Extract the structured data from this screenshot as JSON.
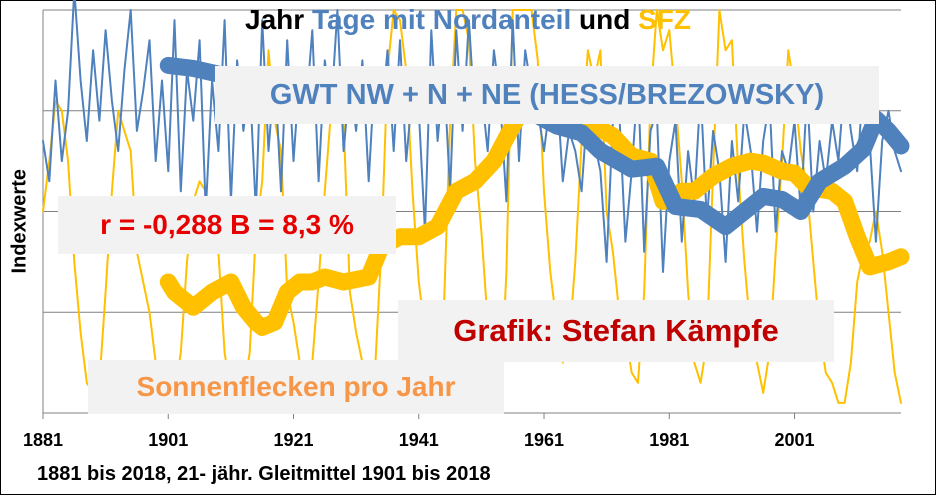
{
  "title": {
    "part1": "Jahr",
    "part2": "Tage mit Nordanteil",
    "part3": "und",
    "part4": "SFZ"
  },
  "ylabel": "Indexwerte",
  "footer": "1881 bis 2018, 21- jähr. Gleitmittel 1901 bis 2018",
  "annotations": {
    "gwt": "GWT NW + N + NE (HESS/BREZOWSKY)",
    "corr": "r = -0,288  B = 8,3 %",
    "credit": "Grafik: Stefan Kämpfe",
    "sunspots": "Sonnenflecken pro Jahr"
  },
  "colors": {
    "blue": "#4f81bd",
    "gold": "#ffc000",
    "red": "#e60000",
    "darkred": "#c00000",
    "orange": "#f79646",
    "grid": "#808080"
  },
  "chart_data": {
    "type": "line",
    "title": "Jahr Tage mit Nordanteil und SFZ",
    "ylabel": "Indexwerte",
    "xlabel": "1881 bis 2018, 21- jähr. Gleitmittel 1901 bis 2018",
    "x_ticks": [
      "1881",
      "1901",
      "1921",
      "1941",
      "1961",
      "1981",
      "2001"
    ],
    "xlim": [
      1881,
      2018
    ],
    "ylim": [
      0,
      4
    ],
    "grid": "horizontal",
    "series": [
      {
        "name": "GWT NW + N + NE (HESS/BREZOWSKY)",
        "style": "thin",
        "color": "#4f81bd",
        "x": [
          1881,
          1882,
          1883,
          1884,
          1885,
          1886,
          1887,
          1888,
          1889,
          1890,
          1891,
          1892,
          1893,
          1894,
          1895,
          1896,
          1897,
          1898,
          1899,
          1900,
          1901,
          1902,
          1903,
          1904,
          1905,
          1906,
          1907,
          1908,
          1909,
          1910,
          1911,
          1912,
          1913,
          1914,
          1915,
          1916,
          1917,
          1918,
          1919,
          1920,
          1921,
          1922,
          1923,
          1924,
          1925,
          1926,
          1927,
          1928,
          1929,
          1930,
          1931,
          1932,
          1933,
          1934,
          1935,
          1936,
          1937,
          1938,
          1939,
          1940,
          1941,
          1942,
          1943,
          1944,
          1945,
          1946,
          1947,
          1948,
          1949,
          1950,
          1951,
          1952,
          1953,
          1954,
          1955,
          1956,
          1957,
          1958,
          1959,
          1960,
          1961,
          1962,
          1963,
          1964,
          1965,
          1966,
          1967,
          1968,
          1969,
          1970,
          1971,
          1972,
          1973,
          1974,
          1975,
          1976,
          1977,
          1978,
          1979,
          1980,
          1981,
          1982,
          1983,
          1984,
          1985,
          1986,
          1987,
          1988,
          1989,
          1990,
          1991,
          1992,
          1993,
          1994,
          1995,
          1996,
          1997,
          1998,
          1999,
          2000,
          2001,
          2002,
          2003,
          2004,
          2005,
          2006,
          2007,
          2008,
          2009,
          2010,
          2011,
          2012,
          2013,
          2014,
          2015,
          2016,
          2017,
          2018
        ],
        "y": [
          2.7,
          2.3,
          3.3,
          2.5,
          3.0,
          4.2,
          3.3,
          2.7,
          3.6,
          2.9,
          3.8,
          3.1,
          2.6,
          3.4,
          4.0,
          2.8,
          3.2,
          3.7,
          2.5,
          3.3,
          2.4,
          3.9,
          2.2,
          3.4,
          2.9,
          3.7,
          2.0,
          3.3,
          2.6,
          3.9,
          2.1,
          3.5,
          2.8,
          3.3,
          2.0,
          3.9,
          2.6,
          3.4,
          2.2,
          3.7,
          2.5,
          3.4,
          3.0,
          3.8,
          2.3,
          3.5,
          3.0,
          4.0,
          2.6,
          3.3,
          2.8,
          3.5,
          2.3,
          3.4,
          2.9,
          3.6,
          2.6,
          3.7,
          2.5,
          3.2,
          3.0,
          1.8,
          3.8,
          2.7,
          3.4,
          2.2,
          3.8,
          2.8,
          3.9,
          2.9,
          3.2,
          2.6,
          3.6,
          3.1,
          2.1,
          3.9,
          2.5,
          3.6,
          3.2,
          3.0,
          2.6,
          3.1,
          3.3,
          2.3,
          2.8,
          2.6,
          2.2,
          3.1,
          2.7,
          2.4,
          1.5,
          2.9,
          3.0,
          1.7,
          2.4,
          3.3,
          1.6,
          2.8,
          3.0,
          1.4,
          2.5,
          2.9,
          1.7,
          2.6,
          2.1,
          3.2,
          1.9,
          2.8,
          2.4,
          1.5,
          2.7,
          2.1,
          3.0,
          2.6,
          1.8,
          2.7,
          3.1,
          1.8,
          2.6,
          2.4,
          2.9,
          2.0,
          3.2,
          2.0,
          2.7,
          2.3,
          2.9,
          2.5,
          3.3,
          2.8,
          2.4,
          3.3,
          2.7,
          1.7,
          2.7,
          3.0,
          2.6,
          2.4
        ]
      },
      {
        "name": "GWT NW + N + NE (HESS/BREZOWSKY)",
        "style": "smoothed",
        "color": "#4f81bd",
        "x": [
          1901,
          1905,
          1910,
          1915,
          1920,
          1925,
          1930,
          1935,
          1940,
          1945,
          1950,
          1955,
          1958,
          1960,
          1963,
          1967,
          1970,
          1975,
          1979,
          1982,
          1986,
          1990,
          1993,
          1996,
          1999,
          2002,
          2005,
          2009,
          2012,
          2014,
          2016,
          2018
        ],
        "y": [
          3.45,
          3.42,
          3.35,
          3.28,
          3.28,
          3.2,
          3.08,
          3.2,
          3.28,
          3.22,
          3.2,
          3.1,
          3.12,
          2.95,
          2.85,
          2.78,
          2.6,
          2.42,
          2.45,
          2.05,
          2.02,
          1.85,
          2.0,
          2.15,
          2.12,
          2.0,
          2.3,
          2.45,
          2.62,
          2.92,
          2.8,
          2.65
        ]
      },
      {
        "name": "Sonnenflecken pro Jahr",
        "style": "thin",
        "color": "#ffc000",
        "x": [
          1881,
          1882,
          1883,
          1884,
          1885,
          1886,
          1887,
          1888,
          1889,
          1890,
          1891,
          1892,
          1893,
          1894,
          1895,
          1896,
          1897,
          1898,
          1899,
          1900,
          1901,
          1902,
          1903,
          1904,
          1905,
          1906,
          1907,
          1908,
          1909,
          1910,
          1911,
          1912,
          1913,
          1914,
          1915,
          1916,
          1917,
          1918,
          1919,
          1920,
          1921,
          1922,
          1923,
          1924,
          1925,
          1926,
          1927,
          1928,
          1929,
          1930,
          1931,
          1932,
          1933,
          1934,
          1935,
          1936,
          1937,
          1938,
          1939,
          1940,
          1941,
          1942,
          1943,
          1944,
          1945,
          1946,
          1947,
          1948,
          1949,
          1950,
          1951,
          1952,
          1953,
          1954,
          1955,
          1956,
          1957,
          1958,
          1959,
          1960,
          1961,
          1962,
          1963,
          1964,
          1965,
          1966,
          1967,
          1968,
          1969,
          1970,
          1971,
          1972,
          1973,
          1974,
          1975,
          1976,
          1977,
          1978,
          1979,
          1980,
          1981,
          1982,
          1983,
          1984,
          1985,
          1986,
          1987,
          1988,
          1989,
          1990,
          1991,
          1992,
          1993,
          1994,
          1995,
          1996,
          1997,
          1998,
          1999,
          2000,
          2001,
          2002,
          2003,
          2004,
          2005,
          2006,
          2007,
          2008,
          2009,
          2010,
          2011,
          2012,
          2013,
          2014,
          2015,
          2016,
          2017,
          2018
        ],
        "y": [
          2.0,
          2.5,
          3.1,
          3.0,
          2.5,
          1.5,
          0.8,
          0.3,
          0.2,
          0.3,
          1.2,
          2.2,
          3.0,
          2.8,
          2.6,
          1.6,
          1.3,
          1.0,
          0.5,
          0.3,
          0.1,
          0.2,
          0.6,
          1.5,
          2.1,
          2.3,
          2.2,
          1.7,
          1.6,
          0.6,
          0.2,
          0.1,
          0.2,
          0.6,
          1.8,
          2.3,
          3.6,
          2.9,
          2.6,
          1.2,
          0.9,
          0.5,
          0.2,
          0.5,
          1.3,
          2.2,
          3.0,
          3.2,
          2.9,
          1.2,
          0.8,
          0.5,
          0.2,
          0.4,
          1.6,
          3.4,
          4.0,
          3.9,
          3.4,
          2.2,
          1.3,
          0.8,
          0.4,
          0.3,
          1.0,
          2.9,
          4.0,
          4.0,
          3.7,
          2.5,
          1.8,
          0.9,
          0.4,
          0.1,
          1.4,
          4.0,
          4.0,
          4.0,
          4.0,
          3.5,
          2.2,
          1.4,
          0.9,
          0.5,
          0.7,
          1.5,
          2.7,
          3.6,
          3.3,
          3.6,
          2.0,
          1.6,
          1.0,
          0.8,
          0.4,
          0.3,
          1.2,
          3.1,
          4.0,
          3.6,
          3.8,
          3.1,
          2.3,
          1.2,
          0.5,
          0.3,
          0.7,
          2.4,
          4.0,
          3.6,
          3.7,
          2.4,
          1.5,
          0.8,
          0.5,
          0.2,
          0.6,
          1.6,
          2.5,
          3.6,
          3.2,
          2.6,
          2.2,
          1.5,
          0.8,
          0.4,
          0.3,
          0.1,
          0.1,
          0.5,
          1.3,
          1.6,
          1.7,
          2.0,
          1.6,
          1.0,
          0.4,
          0.1
        ]
      },
      {
        "name": "Sonnenflecken pro Jahr",
        "style": "smoothed",
        "color": "#ffc000",
        "x": [
          1901,
          1902,
          1905,
          1908,
          1911,
          1913,
          1915,
          1916,
          1918,
          1920,
          1922,
          1924,
          1926,
          1929,
          1933,
          1935,
          1938,
          1941,
          1944,
          1947,
          1950,
          1953,
          1956,
          1958,
          1961,
          1963,
          1966,
          1969,
          1972,
          1975,
          1978,
          1980,
          1983,
          1985,
          1988,
          1991,
          1994,
          1996,
          1999,
          2001,
          2003,
          2005,
          2007,
          2009,
          2011,
          2013,
          2016,
          2018
        ],
        "y": [
          1.3,
          1.2,
          1.05,
          1.2,
          1.3,
          1.05,
          0.9,
          0.85,
          0.9,
          1.2,
          1.3,
          1.3,
          1.35,
          1.3,
          1.35,
          1.65,
          1.75,
          1.75,
          1.85,
          2.2,
          2.3,
          2.5,
          2.85,
          3.05,
          3.0,
          2.88,
          2.95,
          2.85,
          2.75,
          2.55,
          2.5,
          2.1,
          2.2,
          2.2,
          2.35,
          2.45,
          2.5,
          2.48,
          2.4,
          2.38,
          2.25,
          2.22,
          2.2,
          2.1,
          1.75,
          1.45,
          1.5,
          1.55
        ]
      }
    ]
  }
}
